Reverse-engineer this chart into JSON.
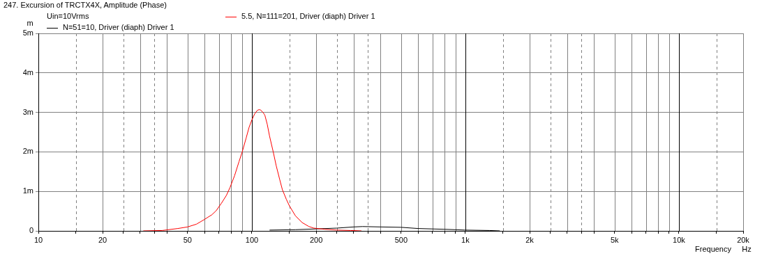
{
  "chart_data": {
    "type": "line",
    "title": "247. Excursion of TRCTX4X, Amplitude (Phase)",
    "xlabel": "Frequency",
    "ylabel": "m",
    "annotations": [
      "Uin=10Vrms",
      "Hz"
    ],
    "log": "x",
    "grid": true,
    "legend": "top",
    "marker": "none",
    "line_style": "solid",
    "xlim": [
      10,
      20000
    ],
    "xticks": [
      10,
      {
        "value": 15,
        "label": null
      },
      {
        "value": 20,
        "label": "20"
      },
      {
        "value": 25,
        "label": null
      },
      {
        "value": 30,
        "label": null
      },
      {
        "value": 35,
        "label": null
      },
      {
        "value": 40,
        "label": null
      },
      50,
      {
        "value": 60,
        "label": null
      },
      {
        "value": 70,
        "label": null
      },
      {
        "value": 80,
        "label": null
      },
      {
        "value": 90,
        "label": null
      },
      100,
      {
        "value": 150,
        "label": null
      },
      200,
      {
        "value": 250,
        "label": null
      },
      {
        "value": 300,
        "label": null
      },
      {
        "value": 350,
        "label": null
      },
      {
        "value": 400,
        "label": null
      },
      500,
      {
        "value": 600,
        "label": null
      },
      {
        "value": 700,
        "label": null
      },
      {
        "value": 800,
        "label": null
      },
      {
        "value": 900,
        "label": null
      },
      {
        "value": 1000,
        "label": "1k"
      },
      {
        "value": 1500,
        "label": null
      },
      {
        "value": 2000,
        "label": "2k"
      },
      {
        "value": 2500,
        "label": null
      },
      {
        "value": 3000,
        "label": null
      },
      {
        "value": 3500,
        "label": null
      },
      {
        "value": 4000,
        "label": null
      },
      {
        "value": 5000,
        "label": "5k"
      },
      {
        "value": 6000,
        "label": null
      },
      {
        "value": 7000,
        "label": null
      },
      {
        "value": 8000,
        "label": null
      },
      {
        "value": 9000,
        "label": null
      },
      {
        "value": 10000,
        "label": "10k"
      },
      {
        "value": 15000,
        "label": null
      },
      {
        "value": 20000,
        "label": "20k"
      }
    ],
    "ylim": [
      0,
      5
    ],
    "yticks": [
      0,
      {
        "value": 1,
        "label": "1m"
      },
      {
        "value": 2,
        "label": "2m"
      },
      {
        "value": 3,
        "label": "3m"
      },
      {
        "value": 4,
        "label": "4m"
      },
      {
        "value": 5,
        "label": "5m"
      }
    ],
    "series": [
      {
        "name": "5.5, N=111=201, Driver (diaph) Driver 1",
        "color": "#ff0000",
        "x": [
          31,
          38,
          45,
          50,
          55,
          60,
          65,
          68,
          72,
          76,
          79,
          83,
          87,
          90,
          94,
          97,
          100,
          103,
          106,
          108,
          110,
          113,
          115,
          118,
          121,
          126,
          130,
          135,
          139,
          145,
          150,
          160,
          172,
          185,
          195,
          220,
          250,
          290,
          326
        ],
        "values": [
          0,
          0.01,
          0.06,
          0.1,
          0.17,
          0.29,
          0.41,
          0.51,
          0.7,
          0.9,
          1.1,
          1.4,
          1.75,
          1.99,
          2.35,
          2.62,
          2.81,
          2.96,
          3.05,
          3.07,
          3.06,
          2.99,
          2.93,
          2.7,
          2.4,
          1.99,
          1.65,
          1.3,
          1.04,
          0.8,
          0.63,
          0.38,
          0.21,
          0.11,
          0.07,
          0.04,
          0.02,
          0.01,
          0
        ]
      },
      {
        "name": "N=51=10, Driver (diaph) Driver 1",
        "color": "#000000",
        "x": [
          121,
          160,
          200,
          250,
          300,
          330,
          400,
          500,
          600,
          800,
          1000,
          1300,
          1450
        ],
        "values": [
          0.02,
          0.03,
          0.05,
          0.07,
          0.1,
          0.11,
          0.1,
          0.09,
          0.06,
          0.04,
          0.02,
          0.01,
          0
        ]
      }
    ]
  }
}
